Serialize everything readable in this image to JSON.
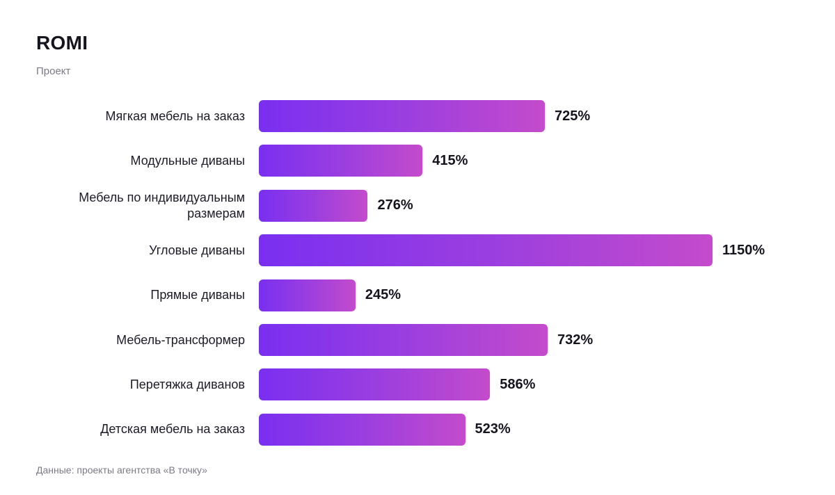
{
  "header": {
    "title": "ROMI",
    "subtitle": "Проект"
  },
  "footer": {
    "source": "Данные: проекты агентства «В точку»"
  },
  "chart_data": {
    "type": "bar",
    "orientation": "horizontal",
    "title": "ROMI",
    "subtitle": "Проект",
    "categories": [
      "Мягкая мебель на заказ",
      "Модульные диваны",
      "Мебель по индивидуальным размерам",
      "Угловые диваны",
      "Прямые диваны",
      "Мебель-трансформер",
      "Перетяжка диванов",
      "Детская мебель на заказ"
    ],
    "values": [
      725,
      415,
      276,
      1150,
      245,
      732,
      586,
      523
    ],
    "value_labels": [
      "725%",
      "415%",
      "276%",
      "1150%",
      "245%",
      "732%",
      "586%",
      "523%"
    ],
    "unit": "%",
    "xlim": [
      0,
      1150
    ],
    "grid": false,
    "legend": "none",
    "colors": {
      "bar_start": "#7a2ff0",
      "bar_end": "#c44bcb",
      "text": "#15151f",
      "muted": "#7a7a86"
    }
  }
}
